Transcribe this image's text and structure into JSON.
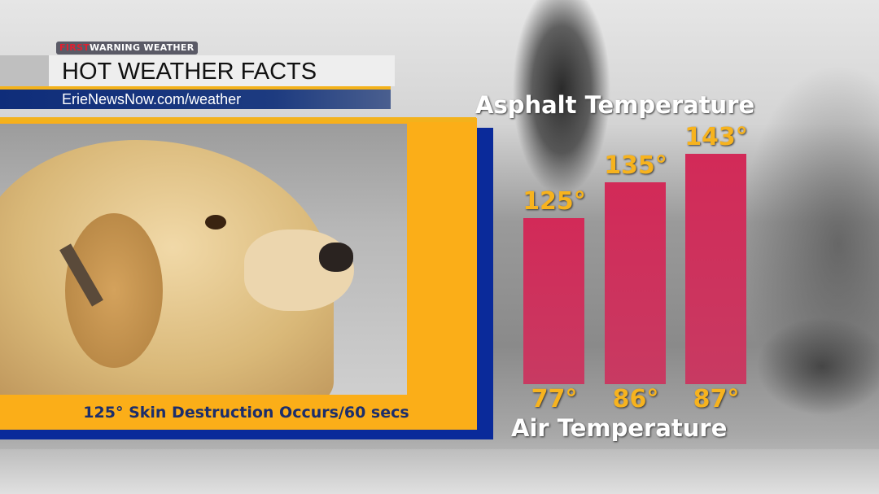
{
  "header": {
    "brand_first": "FIRST",
    "brand_rest": "WARNING WEATHER",
    "title": "HOT WEATHER FACTS",
    "url": "ErieNewsNow.com/weather"
  },
  "panel": {
    "caption": "125° Skin Destruction Occurs/60 secs"
  },
  "colors": {
    "gold": "#f3b21c",
    "blue": "#0a2a9a",
    "bar": "#d22a58"
  },
  "chart_data": {
    "type": "bar",
    "title": "Asphalt Temperature",
    "xlabel": "Air Temperature",
    "categories": [
      "77°",
      "86°",
      "87°"
    ],
    "values": [
      125,
      135,
      143
    ],
    "value_labels": [
      "125°",
      "135°",
      "143°"
    ],
    "grid": false
  }
}
